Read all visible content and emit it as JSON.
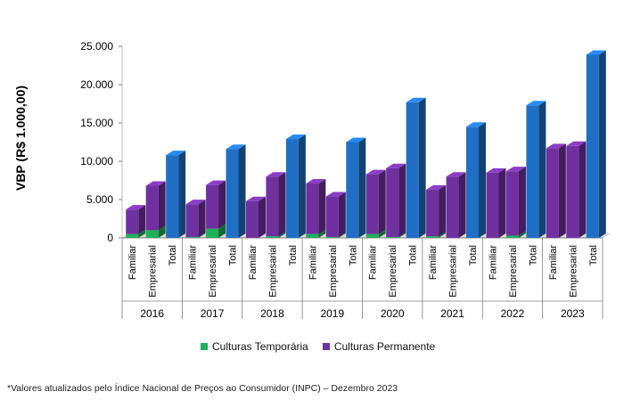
{
  "chart_data": {
    "type": "bar",
    "subtype": "3d-stacked",
    "title": "",
    "ylabel": "VBP (R$ 1.000,00)",
    "ylim": [
      0,
      25000
    ],
    "ytick_labels": [
      "0",
      "5.000",
      "10.000",
      "15.000",
      "20.000",
      "25.000"
    ],
    "ytick_values": [
      0,
      5000,
      10000,
      15000,
      20000,
      25000
    ],
    "years": [
      "2016",
      "2017",
      "2018",
      "2019",
      "2020",
      "2021",
      "2022",
      "2023"
    ],
    "subcategories": [
      "Familiar",
      "Empresarial",
      "Total"
    ],
    "series": [
      {
        "name": "Culturas Temporária",
        "color": "#1fb05a",
        "values": [
          [
            500,
            1000,
            0
          ],
          [
            100,
            1200,
            0
          ],
          [
            0,
            200,
            0
          ],
          [
            500,
            100,
            0
          ],
          [
            500,
            100,
            0
          ],
          [
            200,
            0,
            0
          ],
          [
            0,
            300,
            0
          ],
          [
            0,
            0,
            0
          ]
        ]
      },
      {
        "name": "Culturas Permanente",
        "color": "#7030a0",
        "values": [
          [
            3200,
            5800,
            0
          ],
          [
            4300,
            5700,
            0
          ],
          [
            4800,
            7800,
            0
          ],
          [
            6600,
            5300,
            0
          ],
          [
            7800,
            9000,
            0
          ],
          [
            6100,
            8000,
            0
          ],
          [
            8500,
            8400,
            0
          ],
          [
            11700,
            12000,
            0
          ]
        ]
      },
      {
        "name": "Total",
        "color": "#1f6fc5",
        "values": [
          [
            0,
            0,
            10800
          ],
          [
            0,
            0,
            11600
          ],
          [
            0,
            0,
            12900
          ],
          [
            0,
            0,
            12500
          ],
          [
            0,
            0,
            17700
          ],
          [
            0,
            0,
            14500
          ],
          [
            0,
            0,
            17300
          ],
          [
            0,
            0,
            23900
          ]
        ]
      }
    ],
    "legend_position": "bottom"
  },
  "legend": {
    "items": [
      {
        "label": "Culturas Temporária",
        "color": "#1fb05a"
      },
      {
        "label": "Culturas Permanente",
        "color": "#7030a0"
      }
    ]
  },
  "footnote": "*Valores atualizados pelo Índice Nacional de Preços ao Consumidor (INPC) – Dezembro 2023"
}
